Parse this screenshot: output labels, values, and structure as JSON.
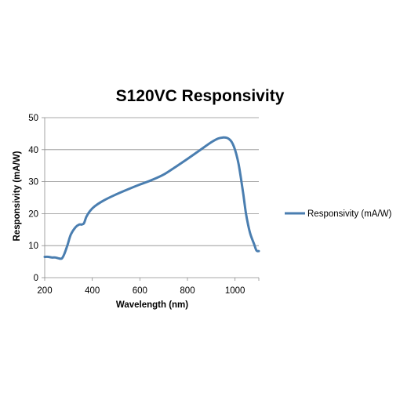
{
  "chart_data": {
    "type": "line",
    "title": "S120VC Responsivity",
    "xlabel": "Wavelength (nm)",
    "ylabel": "Responsivity (mA/W)",
    "xlim": [
      200,
      1100
    ],
    "ylim": [
      0,
      50
    ],
    "xticks": [
      200,
      400,
      600,
      800,
      1000
    ],
    "yticks": [
      0,
      10,
      20,
      30,
      40,
      50
    ],
    "grid": "horizontal",
    "legend_position": "right",
    "series": [
      {
        "name": "Responsivity (mA/W)",
        "color": "#4a7eb0",
        "x": [
          200,
          215,
          230,
          245,
          260,
          272,
          282,
          295,
          310,
          330,
          345,
          355,
          365,
          375,
          390,
          410,
          450,
          500,
          550,
          600,
          650,
          700,
          750,
          800,
          850,
          900,
          930,
          950,
          965,
          975,
          985,
          995,
          1005,
          1015,
          1025,
          1035,
          1045,
          1055,
          1065,
          1080,
          1090,
          1100
        ],
        "y": [
          6.5,
          6.5,
          6.3,
          6.3,
          6.0,
          6.0,
          7.3,
          10.0,
          13.5,
          15.8,
          16.6,
          16.6,
          17.0,
          19.0,
          20.8,
          22.3,
          24.2,
          26.0,
          27.6,
          29.1,
          30.5,
          32.2,
          34.6,
          37.1,
          39.7,
          42.3,
          43.5,
          43.8,
          43.7,
          43.3,
          42.5,
          41.0,
          38.7,
          35.5,
          31.0,
          26.0,
          20.5,
          16.5,
          13.5,
          10.5,
          8.5,
          8.3
        ]
      }
    ]
  }
}
